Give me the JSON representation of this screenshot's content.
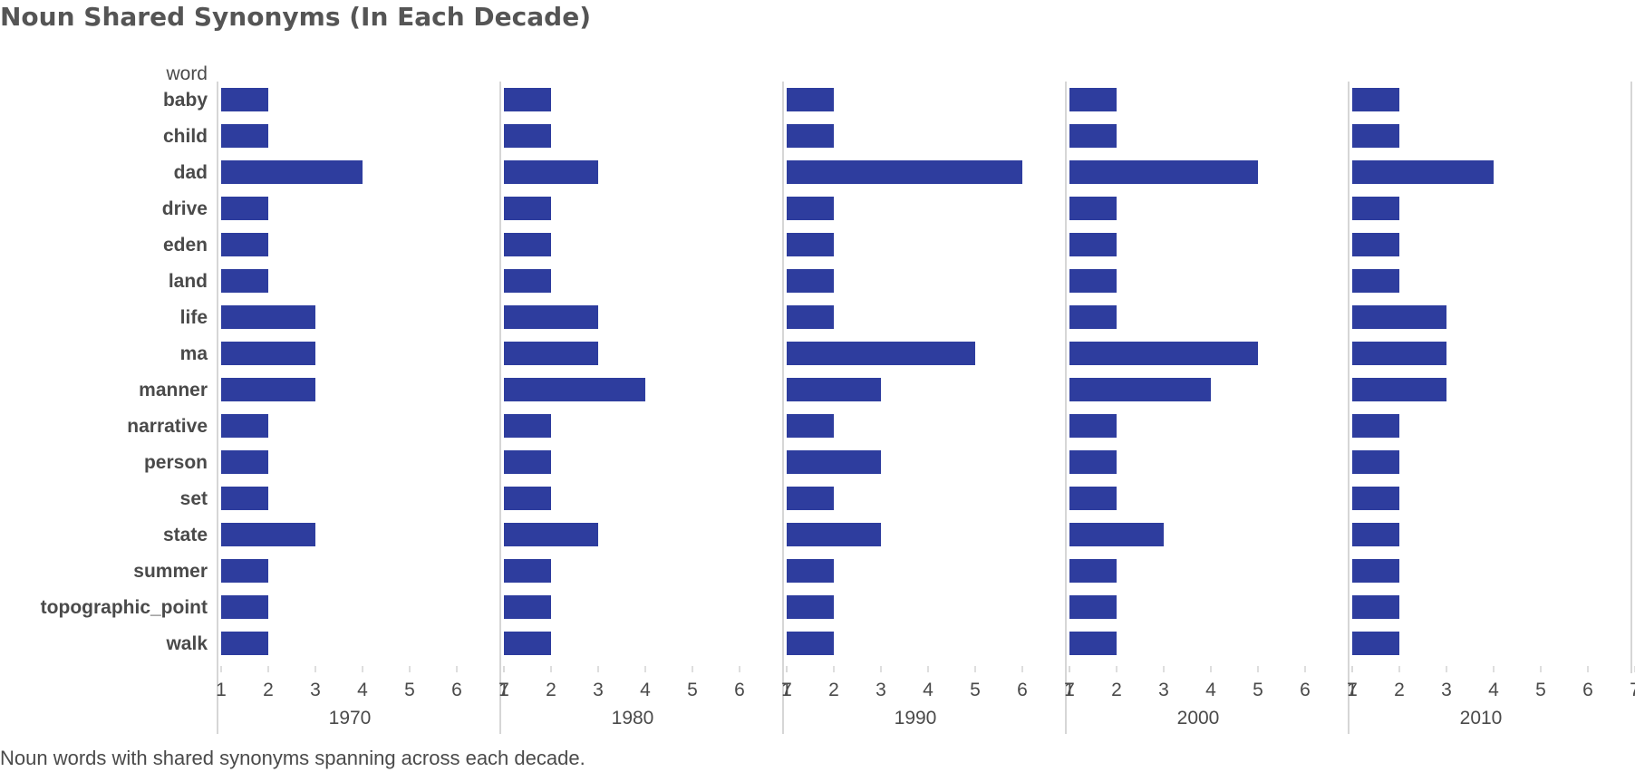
{
  "title": "Noun Shared Synonyms (In Each Decade)",
  "caption": "Noun words with shared synonyms spanning across each decade.",
  "colors": {
    "bar": "#2e3d9e",
    "axis": "#c8c8c8",
    "text": "#4a4a4a"
  },
  "chart_data": {
    "type": "bar",
    "orientation": "horizontal",
    "row_header": "word",
    "categories": [
      "baby",
      "child",
      "dad",
      "drive",
      "eden",
      "land",
      "life",
      "ma",
      "manner",
      "narrative",
      "person",
      "set",
      "state",
      "summer",
      "topographic_point",
      "walk"
    ],
    "x_ticks": [
      1,
      2,
      3,
      4,
      5,
      6,
      7
    ],
    "xlim": [
      1,
      7
    ],
    "series": [
      {
        "name": "1970",
        "values": [
          2,
          2,
          4,
          2,
          2,
          2,
          3,
          3,
          3,
          2,
          2,
          2,
          3,
          2,
          2,
          2
        ]
      },
      {
        "name": "1980",
        "values": [
          2,
          2,
          3,
          2,
          2,
          2,
          3,
          3,
          4,
          2,
          2,
          2,
          3,
          2,
          2,
          2
        ]
      },
      {
        "name": "1990",
        "values": [
          2,
          2,
          6,
          2,
          2,
          2,
          2,
          5,
          3,
          2,
          3,
          2,
          3,
          2,
          2,
          2
        ]
      },
      {
        "name": "2000",
        "values": [
          2,
          2,
          5,
          2,
          2,
          2,
          2,
          5,
          4,
          2,
          2,
          2,
          3,
          2,
          2,
          2
        ]
      },
      {
        "name": "2010",
        "values": [
          2,
          2,
          4,
          2,
          2,
          2,
          3,
          3,
          3,
          2,
          2,
          2,
          2,
          2,
          2,
          2
        ]
      }
    ]
  }
}
